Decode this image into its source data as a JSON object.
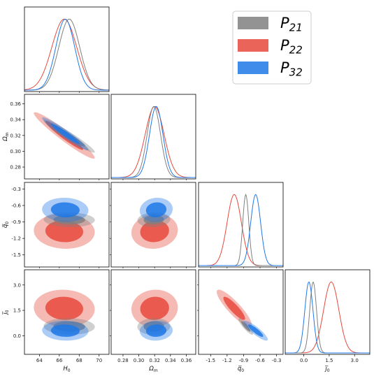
{
  "chart_data": {
    "type": "corner",
    "title": "",
    "colors": {
      "P21": "#808080",
      "P22": "#e8493c",
      "P32": "#1f78e8"
    },
    "legend": {
      "placement": "top-right",
      "entries": [
        {
          "key": "P21",
          "base": "P",
          "sub": "21"
        },
        {
          "key": "P22",
          "base": "P",
          "sub": "22"
        },
        {
          "key": "P32",
          "base": "P",
          "sub": "32"
        }
      ]
    },
    "parameters": [
      {
        "key": "H0",
        "label": {
          "base": "H",
          "sub": "0"
        },
        "range": [
          62.5,
          71
        ],
        "ticks": [
          64,
          66,
          68,
          70
        ],
        "tick_labels": [
          "64",
          "66",
          "68",
          "70"
        ]
      },
      {
        "key": "Om",
        "label": {
          "base": "Ω",
          "sub": "m"
        },
        "range": [
          0.265,
          0.372
        ],
        "ticks": [
          0.28,
          0.3,
          0.32,
          0.34,
          0.36
        ],
        "tick_labels": [
          "0.28",
          "0.30",
          "0.32",
          "0.34",
          "0.36"
        ]
      },
      {
        "key": "q0",
        "label": {
          "base": "q̅",
          "sub": "0"
        },
        "range": [
          -1.72,
          -0.18
        ],
        "ticks": [
          -1.5,
          -1.2,
          -0.9,
          -0.6,
          -0.3
        ],
        "tick_labels": [
          "-1.5",
          "-1.2",
          "-0.9",
          "-0.6",
          "-0.3"
        ]
      },
      {
        "key": "j0",
        "label": {
          "base": "j̅",
          "sub": "0"
        },
        "range": [
          -1.1,
          3.9
        ],
        "ticks": [
          0.0,
          1.5,
          3.0
        ],
        "tick_labels": [
          "0.0",
          "1.5",
          "3.0"
        ]
      }
    ],
    "marginals": {
      "H0": {
        "P21": {
          "mean": 67.0,
          "sd": 1.05
        },
        "P22": {
          "mean": 66.5,
          "sd": 1.25
        },
        "P32": {
          "mean": 66.6,
          "sd": 0.95
        }
      },
      "Om": {
        "P21": {
          "mean": 0.319,
          "sd": 0.0085
        },
        "P22": {
          "mean": 0.32,
          "sd": 0.012
        },
        "P32": {
          "mean": 0.322,
          "sd": 0.0085
        }
      },
      "q0": {
        "P21": {
          "mean": -0.86,
          "sd": 0.055
        },
        "P22": {
          "mean": -1.07,
          "sd": 0.13
        },
        "P32": {
          "mean": -0.68,
          "sd": 0.09
        }
      },
      "j0": {
        "P21": {
          "mean": 0.55,
          "sd": 0.2
        },
        "P22": {
          "mean": 1.62,
          "sd": 0.45
        },
        "P32": {
          "mean": 0.3,
          "sd": 0.24
        }
      }
    },
    "series_order": [
      "P22",
      "P21",
      "P32"
    ],
    "correlations": {
      "Om|H0": -0.96,
      "q0|H0": -0.05,
      "q0|Om": 0.08,
      "j0|H0": -0.05,
      "j0|Om": 0.05,
      "j0|q0": -0.88
    }
  }
}
